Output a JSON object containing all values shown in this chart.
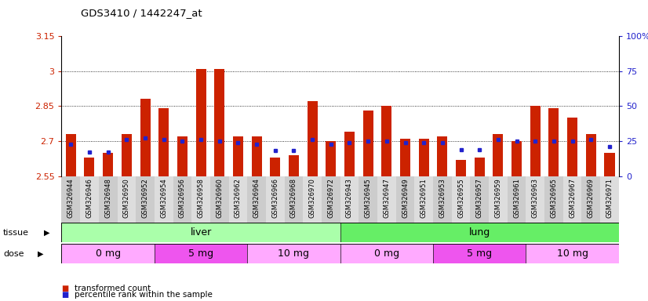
{
  "title": "GDS3410 / 1442247_at",
  "samples": [
    "GSM326944",
    "GSM326946",
    "GSM326948",
    "GSM326950",
    "GSM326952",
    "GSM326954",
    "GSM326956",
    "GSM326958",
    "GSM326960",
    "GSM326962",
    "GSM326964",
    "GSM326966",
    "GSM326968",
    "GSM326970",
    "GSM326972",
    "GSM326943",
    "GSM326945",
    "GSM326947",
    "GSM326949",
    "GSM326951",
    "GSM326953",
    "GSM326955",
    "GSM326957",
    "GSM326959",
    "GSM326961",
    "GSM326963",
    "GSM326965",
    "GSM326967",
    "GSM326969",
    "GSM326971"
  ],
  "bar_values": [
    2.73,
    2.63,
    2.65,
    2.73,
    2.88,
    2.84,
    2.72,
    3.01,
    3.01,
    2.72,
    2.72,
    2.63,
    2.64,
    2.87,
    2.7,
    2.74,
    2.83,
    2.85,
    2.71,
    2.71,
    2.72,
    2.62,
    2.63,
    2.73,
    2.7,
    2.85,
    2.84,
    2.8,
    2.73,
    2.65
  ],
  "percentile_values": [
    23,
    17,
    17,
    26,
    27,
    26,
    25,
    26,
    25,
    24,
    23,
    18,
    18,
    26,
    23,
    24,
    25,
    25,
    24,
    24,
    24,
    19,
    19,
    26,
    25,
    25,
    25,
    25,
    26,
    21
  ],
  "y_min": 2.55,
  "y_max": 3.15,
  "y_ticks": [
    2.55,
    2.7,
    2.85,
    3.0,
    3.15
  ],
  "y_tick_labels": [
    "2.55",
    "2.7",
    "2.85",
    "3",
    "3.15"
  ],
  "y_right_ticks": [
    0,
    25,
    50,
    75,
    100
  ],
  "y_right_tick_labels": [
    "0",
    "25",
    "50",
    "75",
    "100%"
  ],
  "bar_color": "#CC2200",
  "dot_color": "#2222CC",
  "bg_color": "#FFFFFF",
  "xticklabel_bg": "#E8E8E8",
  "tissue_groups": [
    {
      "label": "liver",
      "start": 0,
      "end": 14,
      "color": "#AAFFAA"
    },
    {
      "label": "lung",
      "start": 15,
      "end": 29,
      "color": "#66EE66"
    }
  ],
  "dose_groups": [
    {
      "label": "0 mg",
      "start": 0,
      "end": 4,
      "color": "#FFAAFF"
    },
    {
      "label": "5 mg",
      "start": 5,
      "end": 9,
      "color": "#EE55EE"
    },
    {
      "label": "10 mg",
      "start": 10,
      "end": 14,
      "color": "#FFAAFF"
    },
    {
      "label": "0 mg",
      "start": 15,
      "end": 19,
      "color": "#FFAAFF"
    },
    {
      "label": "5 mg",
      "start": 20,
      "end": 24,
      "color": "#EE55EE"
    },
    {
      "label": "10 mg",
      "start": 25,
      "end": 29,
      "color": "#FFAAFF"
    }
  ],
  "legend_items": [
    {
      "label": "transformed count",
      "color": "#CC2200"
    },
    {
      "label": "percentile rank within the sample",
      "color": "#2222CC"
    }
  ]
}
